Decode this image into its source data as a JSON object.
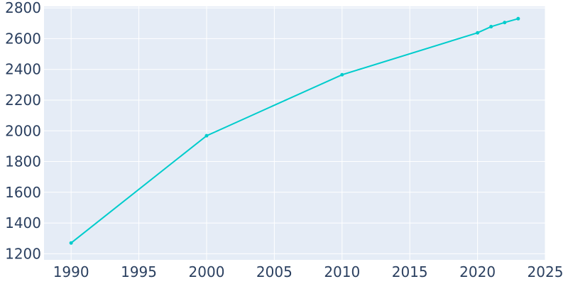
{
  "chart_data": {
    "type": "line",
    "title": "",
    "xlabel": "",
    "ylabel": "",
    "xlim": [
      1988,
      2025
    ],
    "ylim": [
      1160,
      2810
    ],
    "x_ticks": [
      1990,
      1995,
      2000,
      2005,
      2010,
      2015,
      2020,
      2025
    ],
    "y_ticks": [
      1200,
      1400,
      1600,
      1800,
      2000,
      2200,
      2400,
      2600,
      2800
    ],
    "grid": true,
    "legend": "none",
    "series": [
      {
        "x": [
          1990,
          2000,
          2010,
          2020,
          2021,
          2022,
          2023
        ],
        "values": [
          1270,
          1968,
          2365,
          2638,
          2678,
          2705,
          2730
        ]
      }
    ],
    "colors": {
      "background": "#e5ecf6",
      "line": "#00cccc",
      "grid": "#ffffff",
      "text": "#2a3f5f"
    }
  }
}
